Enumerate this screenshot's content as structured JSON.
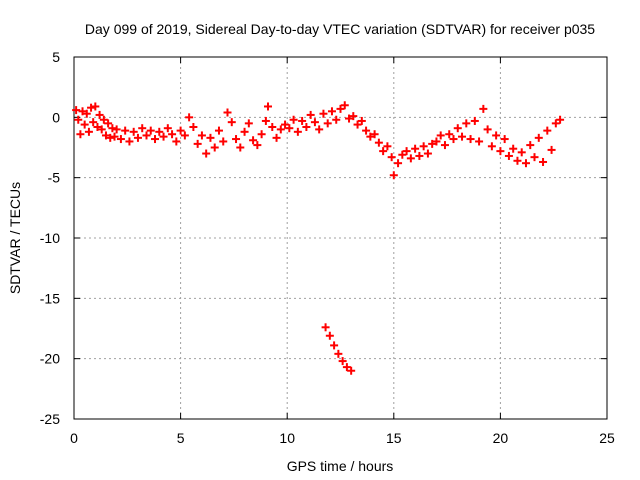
{
  "chart_data": {
    "type": "scatter",
    "title": "Day 099 of 2019, Sidereal Day-to-day VTEC variation (SDTVAR) for receiver p035",
    "xlabel": "GPS time / hours",
    "ylabel": "SDTVAR / TECUs",
    "xlim": [
      0,
      25
    ],
    "ylim": [
      -25,
      5
    ],
    "x_ticks": [
      0,
      5,
      10,
      15,
      20,
      25
    ],
    "y_ticks": [
      -25,
      -20,
      -15,
      -10,
      -5,
      0,
      5
    ],
    "x_tick_labels": [
      "0",
      "5",
      "10",
      "15",
      "20",
      "25"
    ],
    "y_tick_labels": [
      "-25",
      "-20",
      "-15",
      "-10",
      "-5",
      "0",
      "5"
    ],
    "grid": true,
    "marker": "+",
    "series_color": "#ff0000",
    "series": [
      {
        "name": "SDTVAR",
        "points": [
          [
            0.1,
            0.6
          ],
          [
            0.2,
            -0.2
          ],
          [
            0.3,
            -1.4
          ],
          [
            0.4,
            0.5
          ],
          [
            0.5,
            -0.6
          ],
          [
            0.6,
            0.3
          ],
          [
            0.7,
            -1.2
          ],
          [
            0.8,
            0.8
          ],
          [
            0.9,
            -0.4
          ],
          [
            1.0,
            0.9
          ],
          [
            1.1,
            -0.8
          ],
          [
            1.2,
            0.2
          ],
          [
            1.3,
            -1.0
          ],
          [
            1.4,
            -0.2
          ],
          [
            1.5,
            -1.5
          ],
          [
            1.6,
            -0.5
          ],
          [
            1.7,
            -1.7
          ],
          [
            1.8,
            -0.9
          ],
          [
            1.9,
            -1.6
          ],
          [
            2.0,
            -1.0
          ],
          [
            2.2,
            -1.8
          ],
          [
            2.4,
            -1.1
          ],
          [
            2.6,
            -2.0
          ],
          [
            2.8,
            -1.2
          ],
          [
            3.0,
            -1.7
          ],
          [
            3.2,
            -0.9
          ],
          [
            3.4,
            -1.5
          ],
          [
            3.6,
            -1.1
          ],
          [
            3.8,
            -1.8
          ],
          [
            4.0,
            -1.2
          ],
          [
            4.2,
            -1.6
          ],
          [
            4.4,
            -0.9
          ],
          [
            4.6,
            -1.4
          ],
          [
            4.8,
            -2.0
          ],
          [
            5.0,
            -1.1
          ],
          [
            5.2,
            -1.5
          ],
          [
            5.4,
            0.0
          ],
          [
            5.6,
            -0.8
          ],
          [
            5.8,
            -2.2
          ],
          [
            6.0,
            -1.5
          ],
          [
            6.2,
            -3.0
          ],
          [
            6.4,
            -1.7
          ],
          [
            6.6,
            -2.5
          ],
          [
            6.8,
            -1.1
          ],
          [
            7.0,
            -2.0
          ],
          [
            7.2,
            0.4
          ],
          [
            7.4,
            -0.4
          ],
          [
            7.6,
            -1.8
          ],
          [
            7.8,
            -2.5
          ],
          [
            8.0,
            -1.2
          ],
          [
            8.2,
            -0.5
          ],
          [
            8.4,
            -1.9
          ],
          [
            8.6,
            -2.3
          ],
          [
            8.8,
            -1.4
          ],
          [
            9.0,
            -0.3
          ],
          [
            9.1,
            0.9
          ],
          [
            9.3,
            -0.8
          ],
          [
            9.5,
            -1.7
          ],
          [
            9.7,
            -1.0
          ],
          [
            9.9,
            -0.6
          ],
          [
            10.1,
            -0.9
          ],
          [
            10.3,
            -0.2
          ],
          [
            10.5,
            -1.2
          ],
          [
            10.7,
            -0.3
          ],
          [
            10.9,
            -0.8
          ],
          [
            11.1,
            0.2
          ],
          [
            11.3,
            -0.4
          ],
          [
            11.5,
            -1.0
          ],
          [
            11.7,
            0.3
          ],
          [
            11.9,
            -0.5
          ],
          [
            12.1,
            0.5
          ],
          [
            12.3,
            -0.2
          ],
          [
            12.5,
            0.7
          ],
          [
            12.7,
            1.0
          ],
          [
            12.9,
            -0.1
          ],
          [
            13.1,
            0.1
          ],
          [
            13.3,
            -0.6
          ],
          [
            13.5,
            -0.3
          ],
          [
            13.7,
            -1.1
          ],
          [
            13.9,
            -1.6
          ],
          [
            14.1,
            -1.4
          ],
          [
            14.3,
            -2.1
          ],
          [
            14.5,
            -2.8
          ],
          [
            14.7,
            -2.4
          ],
          [
            14.9,
            -3.3
          ],
          [
            15.0,
            -4.8
          ],
          [
            15.2,
            -3.8
          ],
          [
            15.4,
            -3.1
          ],
          [
            15.6,
            -2.8
          ],
          [
            15.8,
            -3.4
          ],
          [
            16.0,
            -2.6
          ],
          [
            16.2,
            -3.2
          ],
          [
            16.4,
            -2.4
          ],
          [
            16.6,
            -3.0
          ],
          [
            16.8,
            -2.2
          ],
          [
            17.0,
            -2.0
          ],
          [
            17.2,
            -1.5
          ],
          [
            17.4,
            -2.3
          ],
          [
            17.6,
            -1.4
          ],
          [
            17.8,
            -1.8
          ],
          [
            18.0,
            -0.9
          ],
          [
            18.2,
            -1.6
          ],
          [
            18.4,
            -0.5
          ],
          [
            18.6,
            -1.8
          ],
          [
            18.8,
            -0.3
          ],
          [
            19.0,
            -2.0
          ],
          [
            19.2,
            0.7
          ],
          [
            19.4,
            -1.0
          ],
          [
            19.6,
            -2.4
          ],
          [
            19.8,
            -1.5
          ],
          [
            20.0,
            -2.8
          ],
          [
            20.2,
            -1.8
          ],
          [
            20.4,
            -3.2
          ],
          [
            20.6,
            -2.6
          ],
          [
            20.8,
            -3.6
          ],
          [
            21.0,
            -2.9
          ],
          [
            21.2,
            -3.8
          ],
          [
            21.4,
            -2.3
          ],
          [
            21.6,
            -3.3
          ],
          [
            21.8,
            -1.7
          ],
          [
            22.0,
            -3.7
          ],
          [
            22.2,
            -1.1
          ],
          [
            22.4,
            -2.7
          ],
          [
            22.6,
            -0.5
          ],
          [
            22.8,
            -0.2
          ],
          [
            11.8,
            -17.4
          ],
          [
            12.0,
            -18.1
          ],
          [
            12.2,
            -18.9
          ],
          [
            12.4,
            -19.6
          ],
          [
            12.6,
            -20.2
          ],
          [
            12.8,
            -20.7
          ],
          [
            13.0,
            -21.0
          ]
        ]
      }
    ]
  }
}
